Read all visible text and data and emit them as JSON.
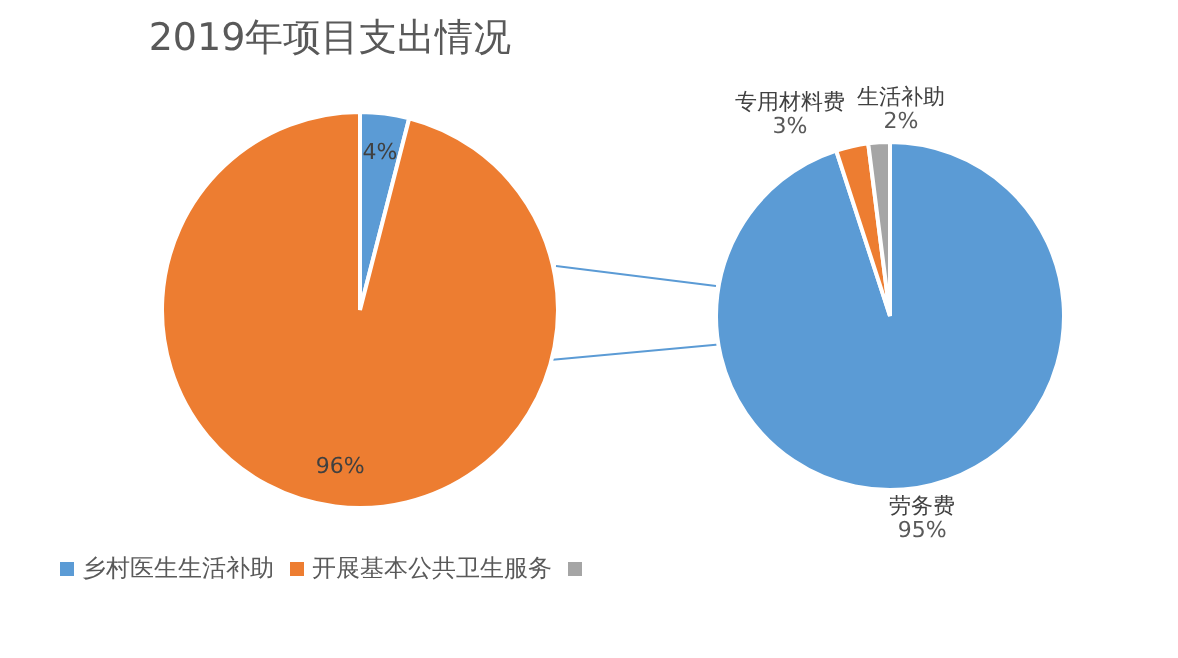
{
  "chart_data": [
    {
      "type": "pie",
      "title": "2019年项目支出情况",
      "categories": [
        "乡村医生生活补助",
        "开展基本公共卫生服务",
        null
      ],
      "values": [
        4,
        96,
        0
      ],
      "colors": [
        "#5b9bd5",
        "#ed7d31",
        "#a5a5a5"
      ],
      "value_labels": [
        "4%",
        "96%",
        null
      ],
      "legend": "bottom"
    },
    {
      "type": "pie",
      "categories": [
        "劳务费",
        "专用材料费",
        "生活补助"
      ],
      "values": [
        95,
        3,
        2
      ],
      "colors": [
        "#5b9bd5",
        "#ed7d31",
        "#a5a5a5"
      ],
      "value_labels": [
        "95%",
        "3%",
        "2%"
      ]
    }
  ]
}
